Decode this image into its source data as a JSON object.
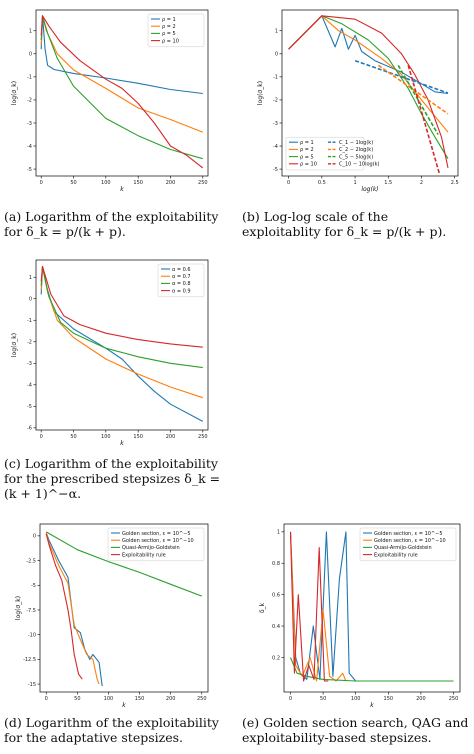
{
  "captions": {
    "a": "(a) Logarithm of the exploitability for δ_k = p/(k + p).",
    "b": "(b) Log-log scale of the exploitablity for δ_k = p/(k + p).",
    "c": "(c) Logarithm of the exploitability for the prescribed stepsizes δ_k = (k + 1)^−α.",
    "d": "(d) Logarithm of the exploitability for the adaptative stepsizes.",
    "e": "(e) Golden section search, QAG and exploitability-based stepsizes."
  },
  "chart_data": [
    {
      "id": "a",
      "type": "line",
      "xlabel": "k",
      "ylabel": "log(σ_k)",
      "xlim": [
        -8,
        258
      ],
      "ylim": [
        -5.3,
        1.9
      ],
      "xticks": [
        0,
        50,
        100,
        150,
        200,
        250
      ],
      "yticks": [
        1,
        0,
        -1,
        -2,
        -3,
        -4,
        -5
      ],
      "grid": false,
      "legend_position": "top-right",
      "series": [
        {
          "name": "ρ = 1",
          "color": "#1f77b4",
          "points": [
            [
              0,
              0.2
            ],
            [
              2,
              1.65
            ],
            [
              6,
              0.2
            ],
            [
              10,
              -0.5
            ],
            [
              20,
              -0.68
            ],
            [
              50,
              -0.85
            ],
            [
              100,
              -1.05
            ],
            [
              150,
              -1.28
            ],
            [
              200,
              -1.55
            ],
            [
              250,
              -1.72
            ]
          ]
        },
        {
          "name": "ρ = 2",
          "color": "#ff7f0e",
          "points": [
            [
              0,
              0.4
            ],
            [
              2,
              1.65
            ],
            [
              8,
              1.0
            ],
            [
              25,
              0.0
            ],
            [
              50,
              -0.7
            ],
            [
              100,
              -1.5
            ],
            [
              150,
              -2.35
            ],
            [
              200,
              -2.85
            ],
            [
              250,
              -3.4
            ]
          ]
        },
        {
          "name": "ρ = 5",
          "color": "#2ca02c",
          "points": [
            [
              0,
              0.6
            ],
            [
              2,
              1.65
            ],
            [
              10,
              0.9
            ],
            [
              25,
              -0.2
            ],
            [
              50,
              -1.4
            ],
            [
              100,
              -2.8
            ],
            [
              150,
              -3.55
            ],
            [
              200,
              -4.15
            ],
            [
              250,
              -4.55
            ]
          ]
        },
        {
          "name": "ρ = 10",
          "color": "#d62728",
          "points": [
            [
              0,
              0.8
            ],
            [
              2,
              1.65
            ],
            [
              12,
              1.2
            ],
            [
              30,
              0.5
            ],
            [
              60,
              -0.3
            ],
            [
              100,
              -1.1
            ],
            [
              125,
              -1.5
            ],
            [
              150,
              -2.15
            ],
            [
              175,
              -3.0
            ],
            [
              200,
              -4.0
            ],
            [
              225,
              -4.4
            ],
            [
              250,
              -4.95
            ]
          ]
        }
      ]
    },
    {
      "id": "b",
      "type": "line",
      "xlabel": "log(k)",
      "ylabel": "log(σ_k)",
      "xlim": [
        -0.1,
        2.55
      ],
      "ylim": [
        -5.3,
        1.9
      ],
      "xticks": [
        0.0,
        0.5,
        1.0,
        1.5,
        2.0,
        2.5
      ],
      "yticks": [
        1,
        0,
        -1,
        -2,
        -3,
        -4,
        -5
      ],
      "grid": false,
      "legend_position": "lower-left",
      "series": [
        {
          "name": "ρ = 1",
          "color": "#1f77b4",
          "points": [
            [
              0,
              0.2
            ],
            [
              0.5,
              1.65
            ],
            [
              0.7,
              0.3
            ],
            [
              0.8,
              1.1
            ],
            [
              0.9,
              0.2
            ],
            [
              1.0,
              0.8
            ],
            [
              1.1,
              0.1
            ],
            [
              1.3,
              -0.3
            ],
            [
              1.7,
              -0.8
            ],
            [
              2.0,
              -1.3
            ],
            [
              2.2,
              -1.65
            ],
            [
              2.4,
              -1.72
            ]
          ]
        },
        {
          "name": "ρ = 2",
          "color": "#ff7f0e",
          "points": [
            [
              0,
              0.2
            ],
            [
              0.5,
              1.65
            ],
            [
              0.75,
              1.0
            ],
            [
              1.0,
              0.6
            ],
            [
              1.4,
              -0.2
            ],
            [
              1.7,
              -0.9
            ],
            [
              2.0,
              -2.0
            ],
            [
              2.2,
              -2.7
            ],
            [
              2.4,
              -3.4
            ]
          ]
        },
        {
          "name": "ρ = 5",
          "color": "#2ca02c",
          "points": [
            [
              0,
              0.2
            ],
            [
              0.5,
              1.65
            ],
            [
              0.8,
              1.3
            ],
            [
              1.2,
              0.6
            ],
            [
              1.5,
              -0.2
            ],
            [
              1.8,
              -1.5
            ],
            [
              2.0,
              -2.6
            ],
            [
              2.2,
              -3.6
            ],
            [
              2.4,
              -4.55
            ]
          ]
        },
        {
          "name": "ρ = 10",
          "color": "#d62728",
          "points": [
            [
              0,
              0.2
            ],
            [
              0.5,
              1.65
            ],
            [
              1.0,
              1.5
            ],
            [
              1.4,
              0.9
            ],
            [
              1.7,
              0.0
            ],
            [
              1.9,
              -0.9
            ],
            [
              2.1,
              -2.0
            ],
            [
              2.3,
              -3.6
            ],
            [
              2.4,
              -4.95
            ]
          ]
        },
        {
          "name": "C_1 − 1log(k)",
          "color": "#1f77b4",
          "dashed": true,
          "points": [
            [
              1.0,
              -0.3
            ],
            [
              2.4,
              -1.7
            ]
          ]
        },
        {
          "name": "C_2 − 2log(k)",
          "color": "#ff7f0e",
          "dashed": true,
          "points": [
            [
              1.35,
              -0.5
            ],
            [
              2.4,
              -2.6
            ]
          ]
        },
        {
          "name": "C_5 − 5log(k)",
          "color": "#2ca02c",
          "dashed": true,
          "points": [
            [
              1.65,
              -0.5
            ],
            [
              2.25,
              -3.5
            ]
          ]
        },
        {
          "name": "C_10 − 10log(k)",
          "color": "#d62728",
          "dashed": true,
          "points": [
            [
              1.8,
              -0.5
            ],
            [
              2.27,
              -5.2
            ]
          ]
        }
      ]
    },
    {
      "id": "c",
      "type": "line",
      "xlabel": "k",
      "ylabel": "log(σ_k)",
      "xlim": [
        -8,
        258
      ],
      "ylim": [
        -6.1,
        1.8
      ],
      "xticks": [
        0,
        50,
        100,
        150,
        200,
        250
      ],
      "yticks": [
        1,
        0,
        -1,
        -2,
        -3,
        -4,
        -5,
        -6
      ],
      "grid": false,
      "legend_position": "top-right",
      "series": [
        {
          "name": "α = 0.6",
          "color": "#1f77b4",
          "points": [
            [
              0,
              0.2
            ],
            [
              2,
              1.5
            ],
            [
              8,
              0.6
            ],
            [
              20,
              -0.6
            ],
            [
              50,
              -1.4
            ],
            [
              100,
              -2.3
            ],
            [
              125,
              -2.8
            ],
            [
              150,
              -3.6
            ],
            [
              175,
              -4.3
            ],
            [
              200,
              -4.9
            ],
            [
              250,
              -5.7
            ]
          ]
        },
        {
          "name": "α = 0.7",
          "color": "#ff7f0e",
          "points": [
            [
              0,
              0.4
            ],
            [
              2,
              1.5
            ],
            [
              10,
              0.3
            ],
            [
              25,
              -1.0
            ],
            [
              50,
              -1.8
            ],
            [
              100,
              -2.8
            ],
            [
              150,
              -3.5
            ],
            [
              200,
              -4.1
            ],
            [
              250,
              -4.6
            ]
          ]
        },
        {
          "name": "α = 0.8",
          "color": "#2ca02c",
          "points": [
            [
              0,
              0.6
            ],
            [
              2,
              1.5
            ],
            [
              12,
              0.1
            ],
            [
              30,
              -1.1
            ],
            [
              50,
              -1.6
            ],
            [
              100,
              -2.3
            ],
            [
              150,
              -2.7
            ],
            [
              200,
              -3.0
            ],
            [
              250,
              -3.2
            ]
          ]
        },
        {
          "name": "α = 0.9",
          "color": "#d62728",
          "points": [
            [
              0,
              0.8
            ],
            [
              2,
              1.5
            ],
            [
              15,
              0.2
            ],
            [
              35,
              -0.8
            ],
            [
              60,
              -1.2
            ],
            [
              100,
              -1.6
            ],
            [
              150,
              -1.9
            ],
            [
              200,
              -2.1
            ],
            [
              250,
              -2.25
            ]
          ]
        }
      ]
    },
    {
      "id": "d",
      "type": "line",
      "xlabel": "k",
      "ylabel": "log(σ_k)",
      "xlim": [
        -10,
        260
      ],
      "ylim": [
        -15.8,
        1.2
      ],
      "xticks": [
        0,
        50,
        100,
        150,
        200,
        250
      ],
      "yticks": [
        0.0,
        -2.5,
        -5.0,
        -7.5,
        -10.0,
        -12.5,
        -15.0
      ],
      "grid": false,
      "legend_position": "top-right",
      "series": [
        {
          "name": "Golden section, ε = 10^−5",
          "color": "#1f77b4",
          "points": [
            [
              0,
              0.3
            ],
            [
              5,
              -0.5
            ],
            [
              20,
              -2.5
            ],
            [
              35,
              -4.2
            ],
            [
              45,
              -9.3
            ],
            [
              55,
              -9.8
            ],
            [
              62,
              -11.5
            ],
            [
              70,
              -12.5
            ],
            [
              75,
              -12.0
            ],
            [
              85,
              -12.8
            ],
            [
              90,
              -15.2
            ]
          ]
        },
        {
          "name": "Golden section, ε = 10^−10",
          "color": "#ff7f0e",
          "points": [
            [
              0,
              0.3
            ],
            [
              5,
              -0.8
            ],
            [
              20,
              -3.0
            ],
            [
              35,
              -4.8
            ],
            [
              45,
              -9.0
            ],
            [
              55,
              -10.5
            ],
            [
              65,
              -12.0
            ],
            [
              75,
              -12.5
            ],
            [
              82,
              -14.5
            ],
            [
              85,
              -15.0
            ]
          ]
        },
        {
          "name": "Quasi-Armijo-Goldstein",
          "color": "#2ca02c",
          "points": [
            [
              0,
              0.4
            ],
            [
              50,
              -1.4
            ],
            [
              100,
              -2.6
            ],
            [
              150,
              -3.7
            ],
            [
              200,
              -4.9
            ],
            [
              250,
              -6.1
            ]
          ]
        },
        {
          "name": "Exploitability rule",
          "color": "#d62728",
          "points": [
            [
              0,
              0.2
            ],
            [
              5,
              -1.0
            ],
            [
              15,
              -3.0
            ],
            [
              25,
              -4.5
            ],
            [
              35,
              -7.5
            ],
            [
              40,
              -9.5
            ],
            [
              45,
              -12.0
            ],
            [
              52,
              -14.0
            ],
            [
              58,
              -14.5
            ]
          ]
        }
      ]
    },
    {
      "id": "e",
      "type": "line",
      "xlabel": "k",
      "ylabel": "δ_k",
      "xlim": [
        -10,
        260
      ],
      "ylim": [
        -0.02,
        1.05
      ],
      "xticks": [
        0,
        50,
        100,
        150,
        200,
        250
      ],
      "yticks": [
        0.2,
        0.4,
        0.6,
        0.8,
        1.0
      ],
      "grid": false,
      "legend_position": "top-right",
      "series": [
        {
          "name": "Golden section, ε = 10^−5",
          "color": "#1f77b4",
          "points": [
            [
              0,
              1.0
            ],
            [
              8,
              0.2
            ],
            [
              15,
              0.1
            ],
            [
              25,
              0.06
            ],
            [
              35,
              0.4
            ],
            [
              45,
              0.06
            ],
            [
              55,
              1.0
            ],
            [
              65,
              0.08
            ],
            [
              75,
              0.7
            ],
            [
              85,
              1.0
            ],
            [
              90,
              0.1
            ],
            [
              100,
              0.05
            ],
            [
              150,
              0.05
            ],
            [
              200,
              0.05
            ],
            [
              250,
              0.05
            ]
          ]
        },
        {
          "name": "Golden section, ε = 10^−10",
          "color": "#ff7f0e",
          "points": [
            [
              0,
              1.0
            ],
            [
              8,
              0.15
            ],
            [
              18,
              0.08
            ],
            [
              30,
              0.2
            ],
            [
              40,
              0.05
            ],
            [
              50,
              0.5
            ],
            [
              60,
              0.08
            ],
            [
              70,
              0.05
            ],
            [
              80,
              0.1
            ],
            [
              85,
              0.05
            ]
          ]
        },
        {
          "name": "Quasi-Armijo-Goldstein",
          "color": "#2ca02c",
          "points": [
            [
              0,
              0.2
            ],
            [
              10,
              0.1
            ],
            [
              25,
              0.08
            ],
            [
              50,
              0.06
            ],
            [
              100,
              0.05
            ],
            [
              150,
              0.05
            ],
            [
              200,
              0.05
            ],
            [
              250,
              0.05
            ]
          ]
        },
        {
          "name": "Exploitability rule",
          "color": "#d62728",
          "points": [
            [
              0,
              1.0
            ],
            [
              6,
              0.1
            ],
            [
              12,
              0.6
            ],
            [
              20,
              0.05
            ],
            [
              28,
              0.15
            ],
            [
              36,
              0.06
            ],
            [
              44,
              0.9
            ],
            [
              52,
              0.05
            ],
            [
              58,
              0.05
            ]
          ]
        }
      ]
    }
  ]
}
